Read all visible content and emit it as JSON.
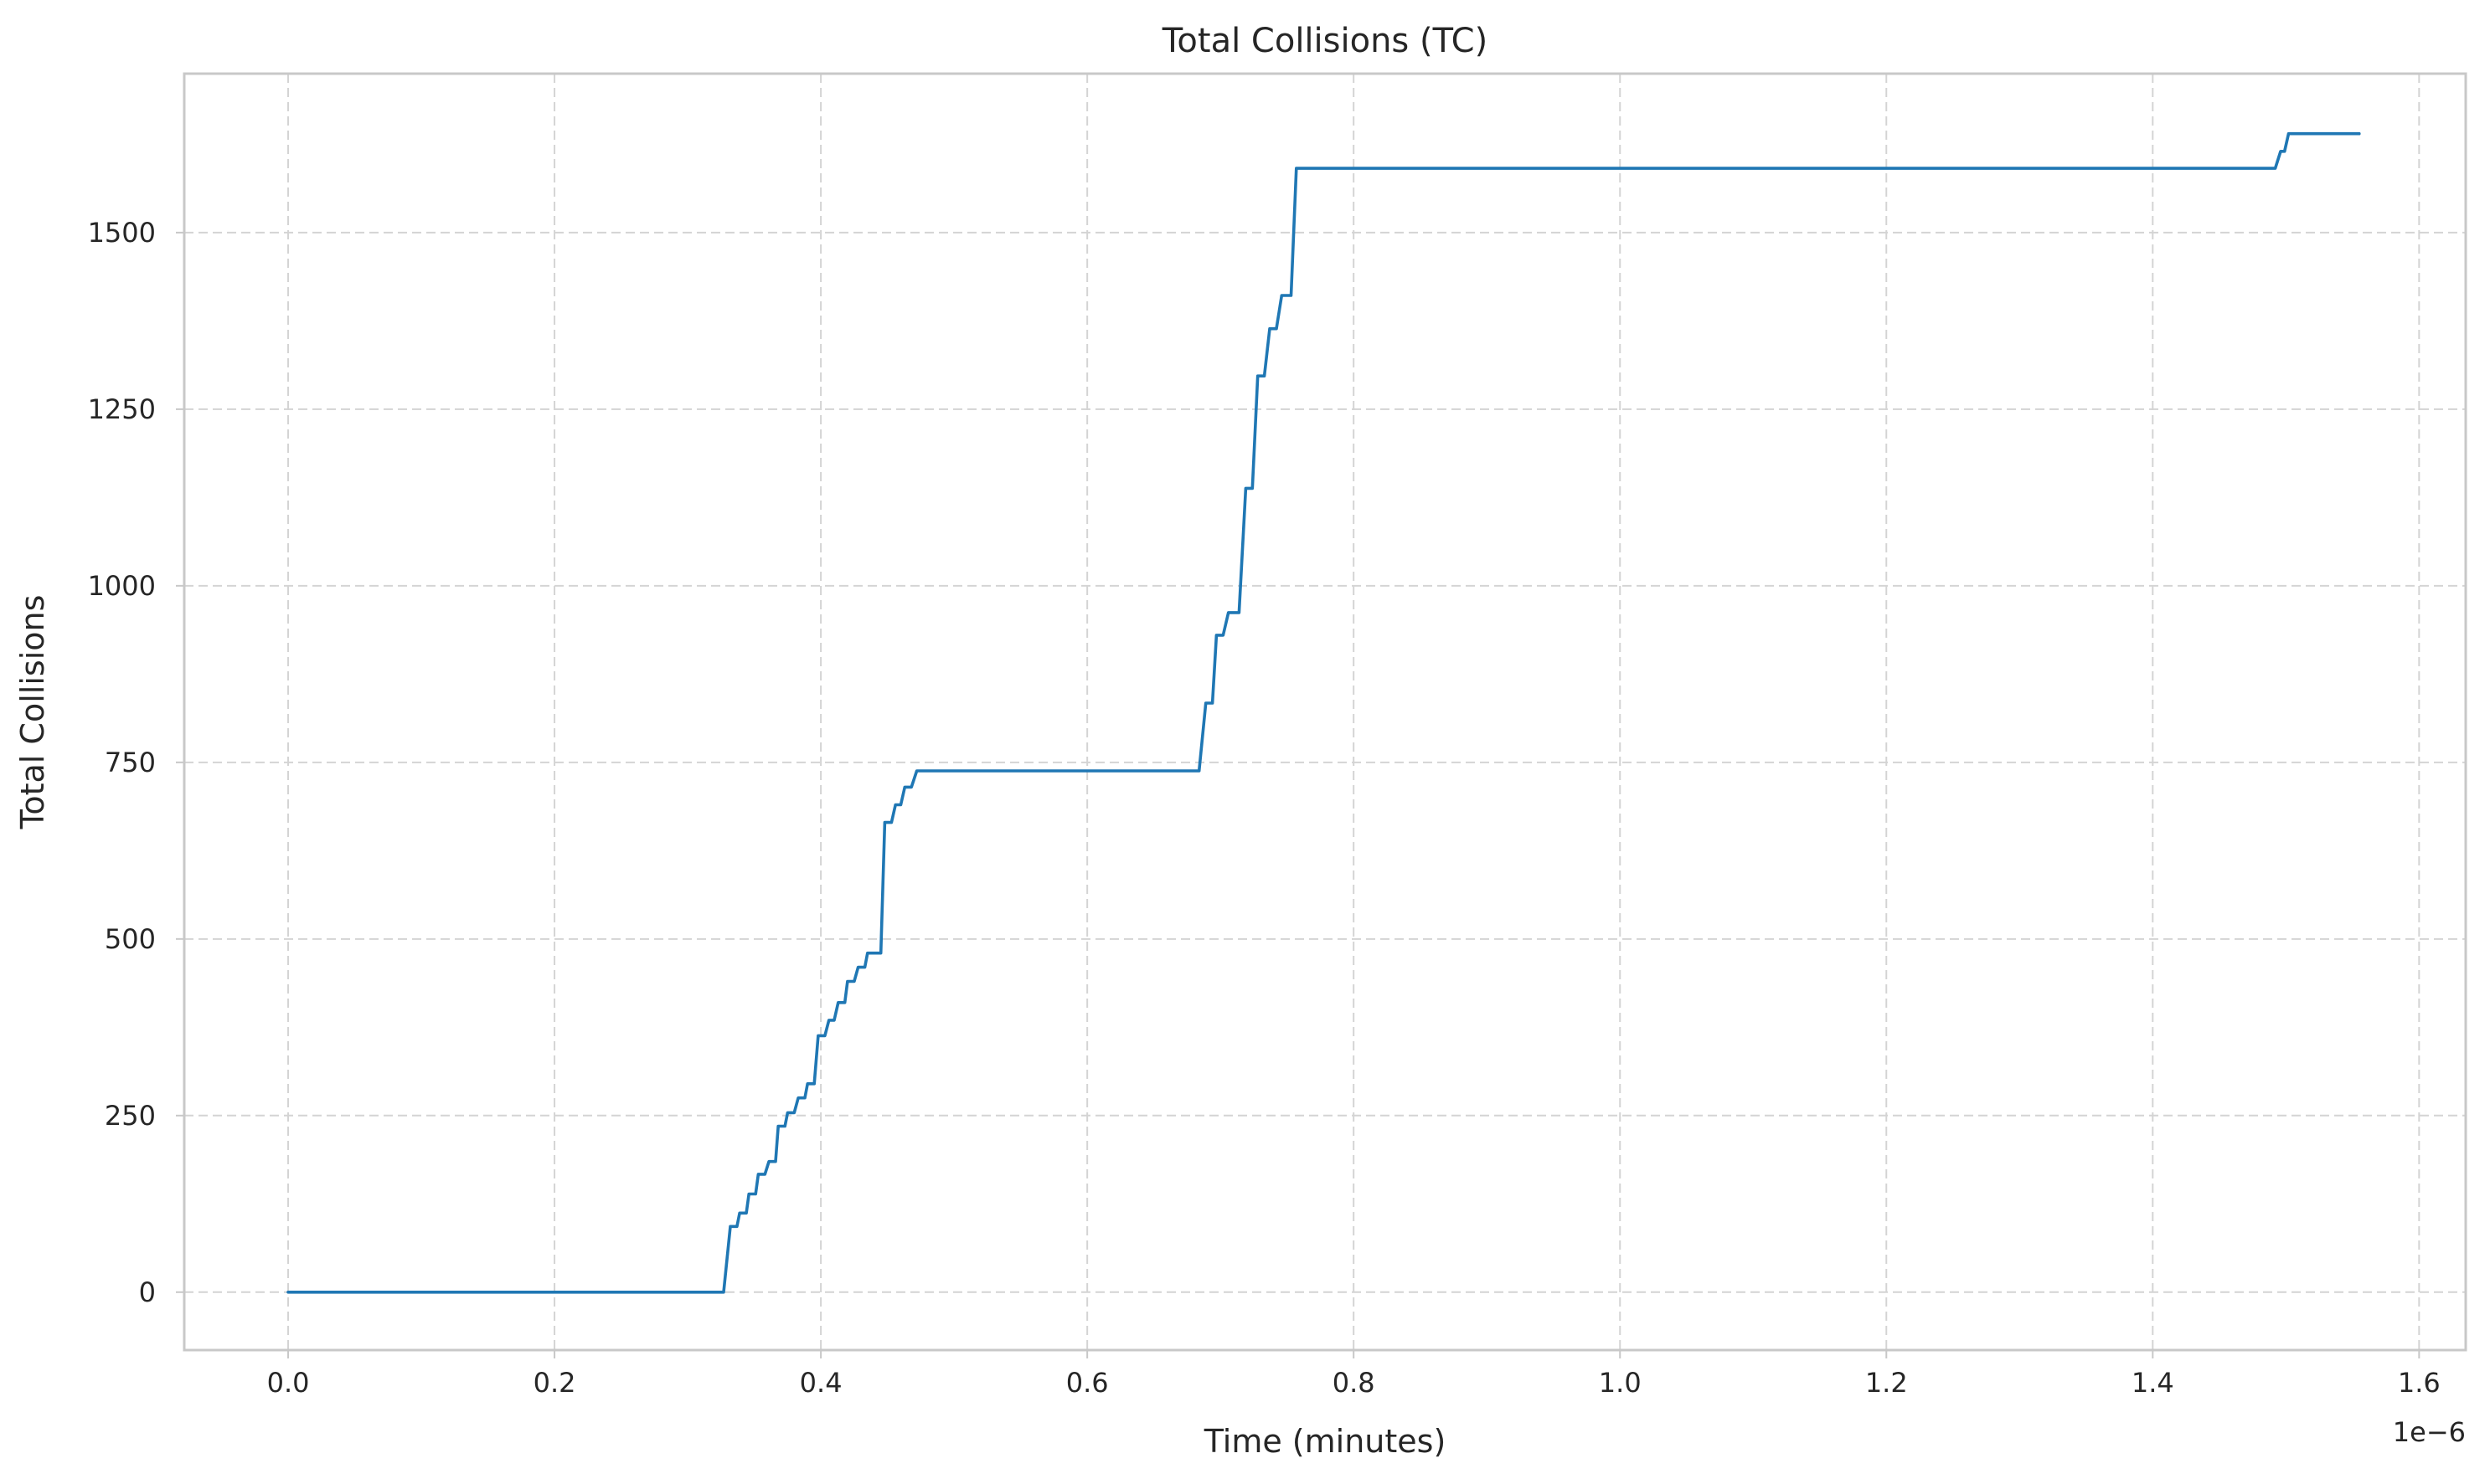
{
  "chart_data": {
    "type": "line",
    "title": "Total Collisions (TC)",
    "xlabel": "Time (minutes)",
    "ylabel": "Total Collisions",
    "x_offset_text": "1e−6",
    "x_scale": 1e-06,
    "xlim": [
      -0.078,
      1.635
    ],
    "ylim": [
      -82,
      1725
    ],
    "x_ticks": [
      0.0,
      0.2,
      0.4,
      0.6,
      0.8,
      1.0,
      1.2,
      1.4,
      1.6
    ],
    "x_tick_labels": [
      "0.0",
      "0.2",
      "0.4",
      "0.6",
      "0.8",
      "1.0",
      "1.2",
      "1.4",
      "1.6"
    ],
    "y_ticks": [
      0,
      250,
      500,
      750,
      1000,
      1250,
      1500
    ],
    "y_tick_labels": [
      "0",
      "250",
      "500",
      "750",
      "1000",
      "1250",
      "1500"
    ],
    "grid": true,
    "line_color": "#1f77b4",
    "series": [
      {
        "x": [
          0.0,
          0.327,
          0.332,
          0.337,
          0.339,
          0.344,
          0.346,
          0.351,
          0.353,
          0.358,
          0.361,
          0.366,
          0.368,
          0.373,
          0.375,
          0.38,
          0.383,
          0.388,
          0.39,
          0.395,
          0.398,
          0.403,
          0.406,
          0.41,
          0.413,
          0.418,
          0.42,
          0.425,
          0.428,
          0.433,
          0.435,
          0.445,
          0.448,
          0.453,
          0.456,
          0.46,
          0.463,
          0.468,
          0.472,
          0.684,
          0.689,
          0.694,
          0.697,
          0.702,
          0.706,
          0.714,
          0.719,
          0.724,
          0.728,
          0.733,
          0.737,
          0.742,
          0.746,
          0.753,
          0.757,
          0.765,
          1.492,
          1.496,
          1.499,
          1.502,
          1.555
        ],
        "y": [
          0,
          0,
          93,
          93,
          112,
          112,
          139,
          139,
          167,
          167,
          185,
          185,
          235,
          235,
          254,
          254,
          275,
          275,
          295,
          295,
          363,
          363,
          385,
          385,
          410,
          410,
          440,
          440,
          460,
          460,
          480,
          480,
          665,
          665,
          690,
          690,
          715,
          715,
          738,
          738,
          834,
          834,
          930,
          930,
          962,
          962,
          1138,
          1138,
          1297,
          1297,
          1364,
          1364,
          1411,
          1411,
          1591,
          1591,
          1591,
          1615,
          1615,
          1640,
          1640
        ]
      }
    ]
  }
}
